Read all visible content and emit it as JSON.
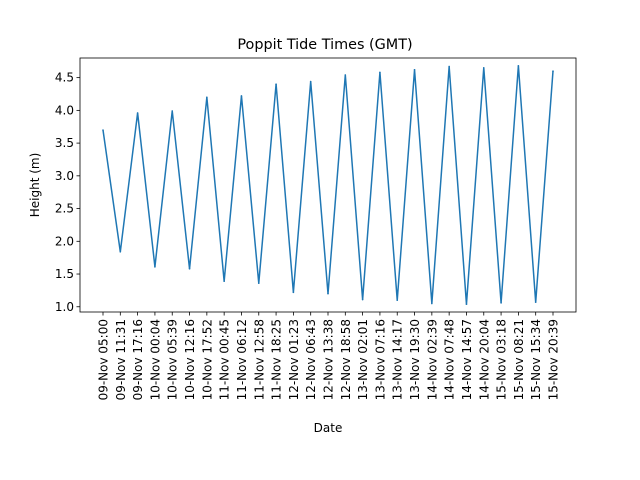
{
  "chart_data": {
    "type": "line",
    "title": "Poppit Tide Times (GMT)",
    "xlabel": "Date",
    "ylabel": "Height (m)",
    "categories": [
      "09-Nov 05:00",
      "09-Nov 11:31",
      "09-Nov 17:16",
      "10-Nov 00:04",
      "10-Nov 05:39",
      "10-Nov 12:16",
      "10-Nov 17:52",
      "11-Nov 00:45",
      "11-Nov 06:12",
      "11-Nov 12:58",
      "11-Nov 18:25",
      "12-Nov 01:23",
      "12-Nov 06:43",
      "12-Nov 13:38",
      "12-Nov 18:58",
      "13-Nov 02:01",
      "13-Nov 07:16",
      "13-Nov 14:17",
      "13-Nov 19:30",
      "14-Nov 02:39",
      "14-Nov 07:48",
      "14-Nov 14:57",
      "14-Nov 20:04",
      "15-Nov 03:18",
      "15-Nov 08:21",
      "15-Nov 15:34",
      "15-Nov 20:39"
    ],
    "series": [
      {
        "values": [
          3.7,
          1.84,
          3.96,
          1.61,
          3.99,
          1.58,
          4.2,
          1.39,
          4.22,
          1.36,
          4.4,
          1.22,
          4.44,
          1.2,
          4.54,
          1.11,
          4.58,
          1.1,
          4.62,
          1.05,
          4.67,
          1.04,
          4.65,
          1.06,
          4.68,
          1.07,
          4.6
        ],
        "color": "#1f77b4"
      }
    ],
    "yticks": [
      "1.0",
      "1.5",
      "2.0",
      "2.5",
      "3.0",
      "3.5",
      "4.0",
      "4.5"
    ],
    "ylim": [
      0.92,
      4.8
    ],
    "grid": false,
    "legend": "none"
  }
}
